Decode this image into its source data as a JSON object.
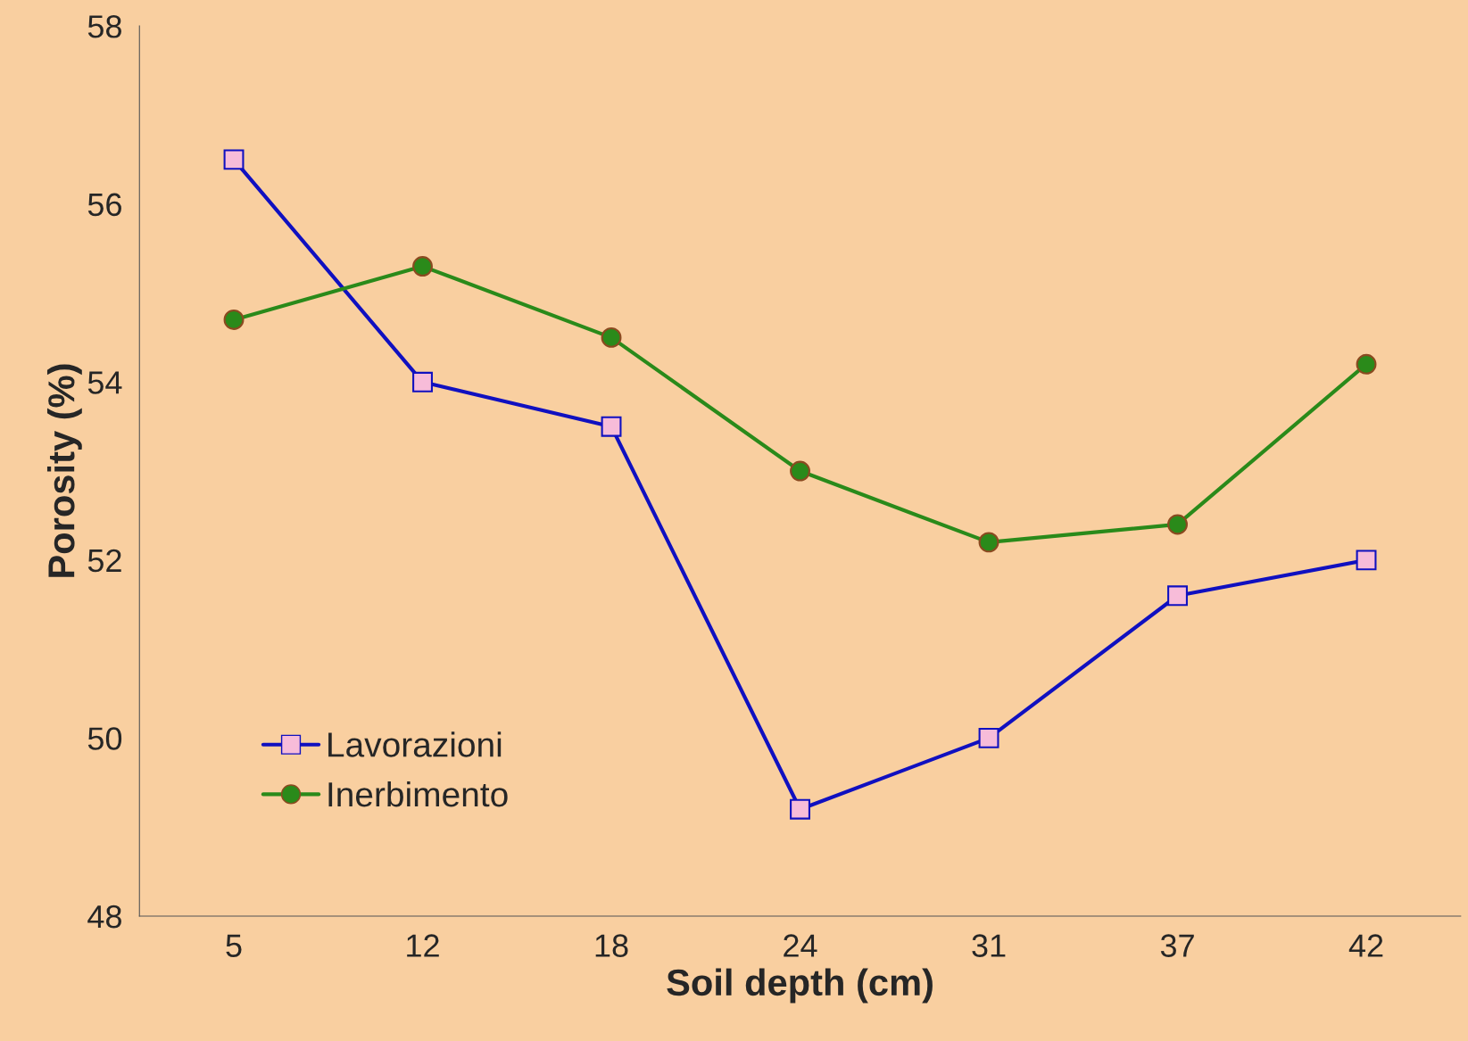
{
  "chart_data": {
    "type": "line",
    "xlabel": "Soil depth (cm)",
    "ylabel": "Porosity (%)",
    "categories": [
      "5",
      "12",
      "18",
      "24",
      "31",
      "37",
      "42"
    ],
    "series": [
      {
        "name": "Lavorazioni",
        "color": "#1010c0",
        "marker": "square",
        "values": [
          56.5,
          54.0,
          53.5,
          49.2,
          50.0,
          51.6,
          52.0
        ]
      },
      {
        "name": "Inerbimento",
        "color": "#2a8a1a",
        "marker": "circle",
        "values": [
          54.7,
          55.3,
          54.5,
          53.0,
          52.2,
          52.4,
          54.2
        ]
      }
    ],
    "ylim": [
      48,
      58
    ],
    "yticks": [
      48,
      50,
      52,
      54,
      56,
      58
    ],
    "grid": false,
    "legend": "bottom left",
    "line_style": "solid"
  }
}
